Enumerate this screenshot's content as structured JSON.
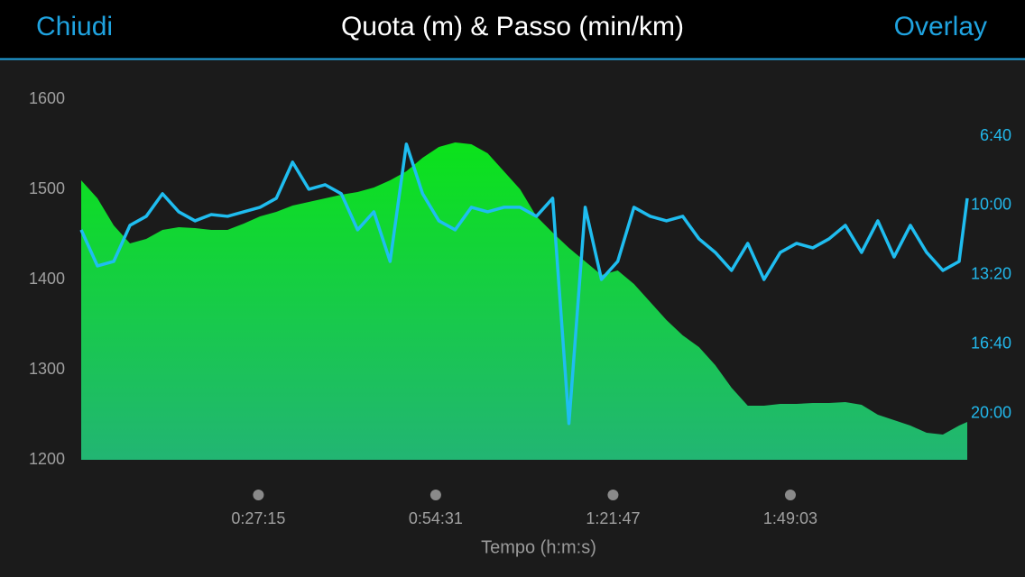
{
  "header": {
    "left_button": "Chiudi",
    "right_button": "Overlay"
  },
  "chart_data": {
    "type": "line",
    "title": "Quota (m) & Passo (min/km)",
    "x_label": "Tempo (h:m:s)",
    "x": [
      0,
      150,
      300,
      450,
      600,
      750,
      900,
      1050,
      1200,
      1350,
      1500,
      1650,
      1800,
      1950,
      2100,
      2250,
      2400,
      2550,
      2700,
      2850,
      3000,
      3150,
      3300,
      3450,
      3600,
      3750,
      3900,
      4050,
      4200,
      4350,
      4500,
      4650,
      4800,
      4950,
      5100,
      5250,
      5400,
      5550,
      5700,
      5850,
      6000,
      6150,
      6300,
      6450,
      6600,
      6750,
      6900,
      7050,
      7200,
      7350,
      7500,
      7650,
      7800,
      7950,
      8100,
      8175
    ],
    "xlim": [
      0,
      8175
    ],
    "xticks": [
      {
        "value": 1635,
        "label": "0:27:15"
      },
      {
        "value": 3271,
        "label": "0:54:31"
      },
      {
        "value": 4907,
        "label": "1:21:47"
      },
      {
        "value": 6543,
        "label": "1:49:03"
      }
    ],
    "ylim": [
      1200,
      1600
    ],
    "yticks": [
      1200,
      1300,
      1400,
      1500,
      1600
    ],
    "y2lim": [
      1332.5,
      293.5
    ],
    "y2ticks": [
      {
        "value": 400,
        "label": "6:40"
      },
      {
        "value": 600,
        "label": "10:00"
      },
      {
        "value": 800,
        "label": "13:20"
      },
      {
        "value": 1000,
        "label": "16:40"
      },
      {
        "value": 1200,
        "label": "20:00"
      }
    ],
    "series": [
      {
        "name": "Quota",
        "kind": "area",
        "color": "#0be31a",
        "values": [
          1510,
          1490,
          1460,
          1440,
          1445,
          1455,
          1458,
          1457,
          1455,
          1455,
          1462,
          1470,
          1475,
          1482,
          1486,
          1490,
          1494,
          1497,
          1502,
          1510,
          1520,
          1535,
          1547,
          1552,
          1550,
          1540,
          1520,
          1500,
          1470,
          1452,
          1435,
          1420,
          1405,
          1410,
          1395,
          1375,
          1355,
          1338,
          1325,
          1305,
          1280,
          1260,
          1260,
          1262,
          1262,
          1263,
          1263,
          1264,
          1261,
          1250,
          1244,
          1238,
          1230,
          1228,
          1238,
          1242
        ]
      },
      {
        "name": "Passo",
        "kind": "line",
        "axis": "y2",
        "color": "#1fbdf0",
        "values": [
          670,
          774,
          761,
          657,
          631,
          566,
          618,
          644,
          626,
          631,
          618,
          605,
          579,
          475,
          553,
          540,
          566,
          670,
          618,
          761,
          423,
          566,
          644,
          670,
          605,
          618,
          605,
          605,
          631,
          579,
          1228,
          605,
          813,
          761,
          605,
          631,
          644,
          631,
          696,
          735,
          787,
          709,
          813,
          735,
          709,
          722,
          696,
          657,
          735,
          644,
          748,
          657,
          735,
          787,
          761,
          579
        ]
      }
    ]
  }
}
